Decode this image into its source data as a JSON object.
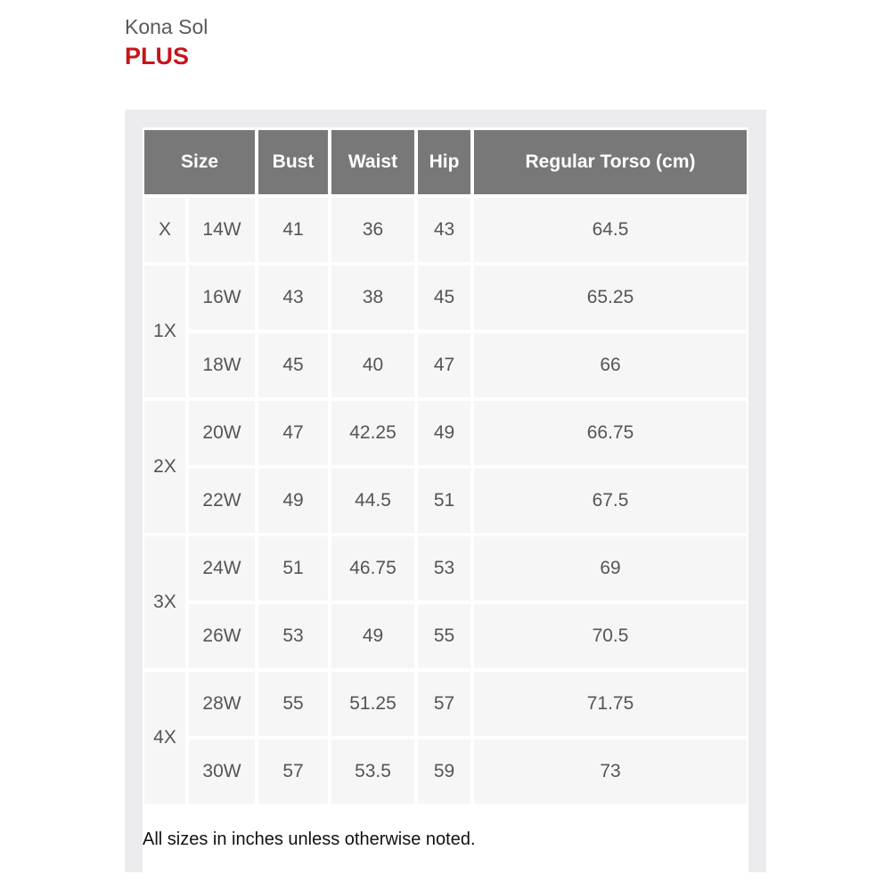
{
  "brand": "Kona Sol",
  "line": "PLUS",
  "colors": {
    "accent": "#c4151c",
    "header_bg": "#787878",
    "cell_bg": "#f6f6f6",
    "panel_bg": "#ececee"
  },
  "table": {
    "headers": [
      "Size",
      "Bust",
      "Waist",
      "Hip",
      "Regular Torso (cm)"
    ],
    "groups": [
      {
        "label": "X",
        "rows": [
          [
            "14W",
            "41",
            "36",
            "43",
            "64.5"
          ]
        ]
      },
      {
        "label": "1X",
        "rows": [
          [
            "16W",
            "43",
            "38",
            "45",
            "65.25"
          ],
          [
            "18W",
            "45",
            "40",
            "47",
            "66"
          ]
        ]
      },
      {
        "label": "2X",
        "rows": [
          [
            "20W",
            "47",
            "42.25",
            "49",
            "66.75"
          ],
          [
            "22W",
            "49",
            "44.5",
            "51",
            "67.5"
          ]
        ]
      },
      {
        "label": "3X",
        "rows": [
          [
            "24W",
            "51",
            "46.75",
            "53",
            "69"
          ],
          [
            "26W",
            "53",
            "49",
            "55",
            "70.5"
          ]
        ]
      },
      {
        "label": "4X",
        "rows": [
          [
            "28W",
            "55",
            "51.25",
            "57",
            "71.75"
          ],
          [
            "30W",
            "57",
            "53.5",
            "59",
            "73"
          ]
        ]
      }
    ]
  },
  "note": "All sizes in inches unless otherwise noted."
}
